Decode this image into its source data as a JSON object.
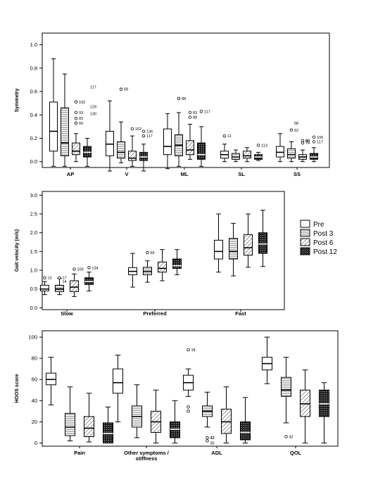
{
  "chart_data": [
    {
      "type": "boxplot",
      "ylabel": "Symmetry",
      "ylim": [
        -0.05,
        1.1
      ],
      "yticks": [
        "0.0",
        "0.2",
        "0.4",
        "0.6",
        "0.8",
        "1.0"
      ],
      "yticks_values": [
        0.0,
        0.2,
        0.4,
        0.6,
        0.8,
        1.0
      ],
      "categories": [
        "AP",
        "V",
        "ML",
        "SL",
        "SS"
      ],
      "series": [
        {
          "pattern": "white",
          "boxes": [
            {
              "min": -0.04,
              "q1": 0.09,
              "median": 0.26,
              "q3": 0.51,
              "max": 0.88,
              "outliers": []
            },
            {
              "min": -0.08,
              "q1": 0.05,
              "median": 0.15,
              "q3": 0.26,
              "max": 0.52,
              "outliers": []
            },
            {
              "min": -0.06,
              "q1": 0.06,
              "median": 0.13,
              "q3": 0.28,
              "max": 0.41,
              "outliers": []
            },
            {
              "min": 0.0,
              "q1": 0.03,
              "median": 0.06,
              "q3": 0.09,
              "max": 0.15,
              "outliers": [
                {
                  "v": 0.22,
                  "label": "11"
                }
              ]
            },
            {
              "min": 0.0,
              "q1": 0.04,
              "median": 0.08,
              "q3": 0.13,
              "max": 0.24,
              "outliers": []
            }
          ]
        },
        {
          "pattern": "hstripe",
          "boxes": [
            {
              "min": -0.04,
              "q1": 0.05,
              "median": 0.16,
              "q3": 0.46,
              "max": 0.75,
              "outliers": []
            },
            {
              "min": -0.01,
              "q1": 0.03,
              "median": 0.08,
              "q3": 0.17,
              "max": 0.34,
              "outliers": [
                {
                  "v": 0.62,
                  "label": "68"
                }
              ]
            },
            {
              "min": -0.04,
              "q1": 0.05,
              "median": 0.14,
              "q3": 0.23,
              "max": 0.42,
              "outliers": [
                {
                  "v": 0.54,
                  "label": "88"
                }
              ]
            },
            {
              "min": 0.0,
              "q1": 0.02,
              "median": 0.04,
              "q3": 0.07,
              "max": 0.1,
              "outliers": []
            },
            {
              "min": 0.0,
              "q1": 0.03,
              "median": 0.06,
              "q3": 0.11,
              "max": 0.17,
              "outliers": [
                {
                  "v": 0.27,
                  "label": "52"
                }
              ]
            }
          ]
        },
        {
          "pattern": "diag",
          "boxes": [
            {
              "min": 0.0,
              "q1": 0.06,
              "median": 0.09,
              "q3": 0.16,
              "max": 0.24,
              "outliers": [
                {
                  "v": 0.51,
                  "label": "102"
                },
                {
                  "v": 0.42,
                  "label": "93"
                },
                {
                  "v": 0.37,
                  "label": "83"
                },
                {
                  "v": 0.33,
                  "label": "60"
                }
              ]
            },
            {
              "min": -0.04,
              "q1": 0.01,
              "median": 0.03,
              "q3": 0.09,
              "max": 0.22,
              "outliers": [
                {
                  "v": 0.28,
                  "label": "102"
                }
              ]
            },
            {
              "min": 0.02,
              "q1": 0.06,
              "median": 0.1,
              "q3": 0.18,
              "max": 0.32,
              "outliers": [
                {
                  "v": 0.42,
                  "label": "83"
                },
                {
                  "v": 0.38,
                  "label": "88"
                }
              ]
            },
            {
              "min": 0.0,
              "q1": 0.03,
              "median": 0.05,
              "q3": 0.09,
              "max": 0.12,
              "outliers": []
            },
            {
              "min": 0.0,
              "q1": 0.02,
              "median": 0.04,
              "q3": 0.06,
              "max": 0.1,
              "outliers": [
                {
                  "v": 0.18,
                  "label": "90"
                },
                {
                  "v": 0.16,
                  "label": "74"
                }
              ]
            }
          ]
        },
        {
          "pattern": "dots",
          "boxes": [
            {
              "min": -0.04,
              "q1": 0.04,
              "median": 0.08,
              "q3": 0.13,
              "max": 0.2,
              "outliers": []
            },
            {
              "min": -0.08,
              "q1": 0.01,
              "median": 0.04,
              "q3": 0.08,
              "max": 0.15,
              "outliers": [
                {
                  "v": 0.26,
                  "label": "136"
                },
                {
                  "v": 0.22,
                  "label": "117"
                }
              ]
            },
            {
              "min": -0.04,
              "q1": 0.02,
              "median": 0.06,
              "q3": 0.16,
              "max": 0.3,
              "outliers": [
                {
                  "v": 0.43,
                  "label": "117"
                }
              ]
            },
            {
              "min": 0.01,
              "q1": 0.02,
              "median": 0.04,
              "q3": 0.06,
              "max": 0.08,
              "outliers": [
                {
                  "v": 0.14,
                  "label": "113"
                }
              ]
            },
            {
              "min": 0.0,
              "q1": 0.02,
              "median": 0.04,
              "q3": 0.07,
              "max": 0.12,
              "outliers": [
                {
                  "v": 0.21,
                  "label": "106"
                },
                {
                  "v": 0.17,
                  "label": "117"
                }
              ]
            }
          ]
        }
      ],
      "floating_labels": [
        {
          "text": "117",
          "category": 0,
          "series": 3,
          "v": 0.64
        },
        {
          "text": "129",
          "category": 0,
          "series": 3,
          "v": 0.47
        },
        {
          "text": "130",
          "category": 0,
          "series": 3,
          "v": 0.41
        },
        {
          "text": "58",
          "category": 4,
          "series": 1,
          "v": 0.33
        },
        {
          "text": "83",
          "category": 4,
          "series": 2,
          "v": 0.18
        }
      ]
    },
    {
      "type": "boxplot",
      "ylabel": "Gait velocity (m/s)",
      "ylim": [
        -0.05,
        3.1
      ],
      "yticks": [
        "0.0",
        "0.5",
        "1.0",
        "1.5",
        "2.0",
        "2.5",
        "3.0"
      ],
      "yticks_values": [
        0.0,
        0.5,
        1.0,
        1.5,
        2.0,
        2.5,
        3.0
      ],
      "categories": [
        "Slow",
        "Preferred",
        "Fast"
      ],
      "series": [
        {
          "pattern": "white",
          "boxes": [
            {
              "min": 0.35,
              "q1": 0.45,
              "median": 0.5,
              "q3": 0.6,
              "max": 0.7,
              "outliers": [
                {
                  "v": 0.8,
                  "label": "13"
                }
              ]
            },
            {
              "min": 0.55,
              "q1": 0.88,
              "median": 0.97,
              "q3": 1.07,
              "max": 1.45,
              "outliers": []
            },
            {
              "min": 0.95,
              "q1": 1.3,
              "median": 1.5,
              "q3": 1.8,
              "max": 2.5,
              "outliers": []
            }
          ]
        },
        {
          "pattern": "hstripe",
          "boxes": [
            {
              "min": 0.35,
              "q1": 0.43,
              "median": 0.5,
              "q3": 0.6,
              "max": 0.78,
              "outliers": [
                {
                  "v": 0.8,
                  "label": "17"
                }
              ]
            },
            {
              "min": 0.68,
              "q1": 0.88,
              "median": 0.97,
              "q3": 1.08,
              "max": 1.25,
              "outliers": [
                {
                  "v": 1.47,
                  "label": "55"
                }
              ]
            },
            {
              "min": 0.85,
              "q1": 1.3,
              "median": 1.5,
              "q3": 1.85,
              "max": 2.25,
              "outliers": []
            }
          ]
        },
        {
          "pattern": "diag",
          "boxes": [
            {
              "min": 0.3,
              "q1": 0.43,
              "median": 0.55,
              "q3": 0.72,
              "max": 0.9,
              "outliers": [
                {
                  "v": 1.03,
                  "label": "100"
                }
              ]
            },
            {
              "min": 0.72,
              "q1": 0.95,
              "median": 1.05,
              "q3": 1.22,
              "max": 1.55,
              "outliers": []
            },
            {
              "min": 1.08,
              "q1": 1.4,
              "median": 1.6,
              "q3": 1.95,
              "max": 2.5,
              "outliers": []
            }
          ]
        },
        {
          "pattern": "dots",
          "boxes": [
            {
              "min": 0.45,
              "q1": 0.62,
              "median": 0.7,
              "q3": 0.8,
              "max": 0.95,
              "outliers": [
                {
                  "v": 1.07,
                  "label": "134"
                }
              ]
            },
            {
              "min": 0.88,
              "q1": 1.05,
              "median": 1.12,
              "q3": 1.3,
              "max": 1.55,
              "outliers": []
            },
            {
              "min": 1.1,
              "q1": 1.45,
              "median": 1.7,
              "q3": 2.0,
              "max": 2.6,
              "outliers": []
            }
          ]
        }
      ],
      "floating_labels": [
        {
          "text": "14",
          "category": 0,
          "series": 1,
          "v": 0.7
        }
      ]
    },
    {
      "type": "boxplot",
      "ylabel": "HOOS score",
      "ylim": [
        -3,
        106
      ],
      "yticks": [
        "0",
        "20",
        "40",
        "60",
        "80",
        "100"
      ],
      "yticks_values": [
        0,
        20,
        40,
        60,
        80,
        100
      ],
      "categories": [
        "Pain",
        "Other symptoms / stiffness",
        "ADL",
        "QOL"
      ],
      "series": [
        {
          "pattern": "white",
          "boxes": [
            {
              "min": 36,
              "q1": 55,
              "median": 60,
              "q3": 66,
              "max": 81,
              "outliers": []
            },
            {
              "min": 20,
              "q1": 47,
              "median": 57,
              "q3": 70,
              "max": 83,
              "outliers": []
            },
            {
              "min": 44,
              "q1": 50,
              "median": 57,
              "q3": 64,
              "max": 70,
              "outliers": [
                {
                  "v": 88,
                  "label": "18"
                },
                {
                  "v": 34,
                  "label": ""
                },
                {
                  "v": 30,
                  "label": ""
                }
              ]
            },
            {
              "min": 56,
              "q1": 69,
              "median": 75,
              "q3": 81,
              "max": 100,
              "outliers": []
            }
          ]
        },
        {
          "pattern": "hstripe",
          "boxes": [
            {
              "min": 2,
              "q1": 7,
              "median": 15,
              "q3": 28,
              "max": 53,
              "outliers": []
            },
            {
              "min": 5,
              "q1": 15,
              "median": 25,
              "q3": 35,
              "max": 55,
              "outliers": []
            },
            {
              "min": 15,
              "q1": 25,
              "median": 30,
              "q3": 35,
              "max": 48,
              "outliers": [
                {
                  "v": 5,
                  "label": "42"
                },
                {
                  "v": 2,
                  "label": ""
                }
              ]
            },
            {
              "min": 19,
              "q1": 44,
              "median": 50,
              "q3": 62,
              "max": 81,
              "outliers": [
                {
                  "v": 6,
                  "label": "42"
                }
              ]
            }
          ]
        },
        {
          "pattern": "diag",
          "boxes": [
            {
              "min": 1,
              "q1": 6,
              "median": 14,
              "q3": 25,
              "max": 47,
              "outliers": []
            },
            {
              "min": 0,
              "q1": 10,
              "median": 20,
              "q3": 30,
              "max": 50,
              "outliers": []
            },
            {
              "min": 0,
              "q1": 9,
              "median": 20,
              "q3": 32,
              "max": 53,
              "outliers": []
            },
            {
              "min": 0,
              "q1": 25,
              "median": 37,
              "q3": 50,
              "max": 69,
              "outliers": []
            }
          ]
        },
        {
          "pattern": "dots",
          "boxes": [
            {
              "min": 0,
              "q1": 0,
              "median": 9,
              "q3": 19,
              "max": 34,
              "outliers": []
            },
            {
              "min": 0,
              "q1": 5,
              "median": 13,
              "q3": 20,
              "max": 40,
              "outliers": []
            },
            {
              "min": 0,
              "q1": 3,
              "median": 10,
              "q3": 20,
              "max": 43,
              "outliers": []
            },
            {
              "min": 0,
              "q1": 25,
              "median": 37,
              "q3": 50,
              "max": 57,
              "outliers": []
            }
          ]
        }
      ],
      "floating_labels": [
        {
          "text": "42",
          "category": 2,
          "series": 1,
          "v": 5
        },
        {
          "text": "35",
          "category": 2,
          "series": 1,
          "v": 0
        }
      ]
    }
  ],
  "legend": {
    "items": [
      {
        "label": "Pre",
        "pattern": "white"
      },
      {
        "label": "Post 3",
        "pattern": "hstripe"
      },
      {
        "label": "Post 6",
        "pattern": "diag"
      },
      {
        "label": "Post 12",
        "pattern": "dots"
      }
    ]
  }
}
